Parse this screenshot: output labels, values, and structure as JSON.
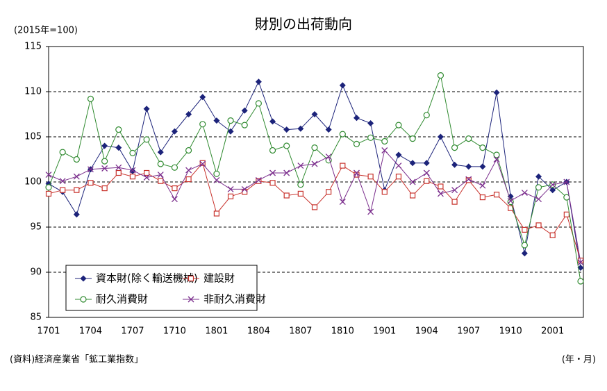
{
  "chart_data": {
    "type": "line",
    "title": "財別の出荷動向",
    "unit_label": "(2015年=100)",
    "source": "(資料)経済産業省「鉱工業指数」",
    "x_label": "(年・月)",
    "categories": [
      "1701",
      null,
      null,
      "1704",
      null,
      null,
      "1707",
      null,
      null,
      "1710",
      null,
      null,
      "1801",
      null,
      null,
      "1804",
      null,
      null,
      "1807",
      null,
      null,
      "1810",
      null,
      null,
      "1901",
      null,
      null,
      "1904",
      null,
      null,
      "1907",
      null,
      null,
      "1910",
      null,
      null,
      "2001",
      null,
      null
    ],
    "series": [
      {
        "name": "資本財(除く輸送機械)",
        "color": "#1c237a",
        "marker": "diamond",
        "values": [
          99.8,
          98.9,
          96.4,
          101.4,
          104.0,
          103.8,
          101.2,
          108.1,
          103.3,
          105.6,
          107.5,
          109.4,
          106.8,
          105.6,
          107.9,
          111.1,
          106.7,
          105.8,
          105.9,
          107.5,
          105.8,
          110.7,
          107.1,
          106.5,
          99.1,
          103.0,
          102.1,
          102.1,
          105.0,
          101.9,
          101.7,
          101.7,
          109.9,
          98.4,
          92.1,
          100.6,
          99.1,
          100.0,
          90.5
        ]
      },
      {
        "name": "建設財",
        "color": "#c8322c",
        "marker": "square",
        "values": [
          98.7,
          99.1,
          99.1,
          99.9,
          99.3,
          101.0,
          100.6,
          101.0,
          100.1,
          99.3,
          100.3,
          102.1,
          96.5,
          98.4,
          98.9,
          100.1,
          99.9,
          98.5,
          98.7,
          97.2,
          98.9,
          101.8,
          100.8,
          100.6,
          98.9,
          100.6,
          98.5,
          100.1,
          99.5,
          97.8,
          100.2,
          98.3,
          98.6,
          97.1,
          94.7,
          95.2,
          94.1,
          96.4,
          91.3
        ]
      },
      {
        "name": "耐久消費財",
        "color": "#2f8a2f",
        "marker": "circle",
        "values": [
          99.4,
          103.3,
          102.5,
          109.2,
          102.3,
          105.8,
          103.2,
          104.7,
          102.0,
          101.6,
          103.5,
          106.4,
          100.9,
          106.8,
          106.3,
          108.7,
          103.5,
          104.0,
          99.7,
          103.8,
          102.4,
          105.3,
          104.2,
          104.9,
          104.5,
          106.3,
          104.8,
          107.4,
          111.8,
          103.8,
          104.8,
          103.8,
          103.0,
          97.8,
          93.0,
          99.4,
          99.7,
          98.3,
          89.0
        ]
      },
      {
        "name": "非耐久消費財",
        "color": "#7a2d8c",
        "marker": "x",
        "values": [
          100.8,
          100.1,
          100.6,
          101.4,
          101.5,
          101.6,
          101.3,
          100.5,
          100.8,
          98.1,
          101.3,
          102.0,
          100.2,
          99.2,
          99.2,
          100.2,
          101.0,
          101.0,
          101.8,
          102.0,
          102.8,
          97.8,
          101.0,
          96.7,
          103.5,
          101.8,
          100.0,
          101.0,
          98.7,
          99.1,
          100.3,
          99.6,
          102.5,
          97.9,
          98.8,
          98.1,
          99.7,
          100.0,
          91.1
        ]
      }
    ],
    "ylim": [
      85,
      115
    ],
    "yticks": [
      85,
      90,
      95,
      100,
      105,
      110,
      115
    ],
    "grid": true
  }
}
